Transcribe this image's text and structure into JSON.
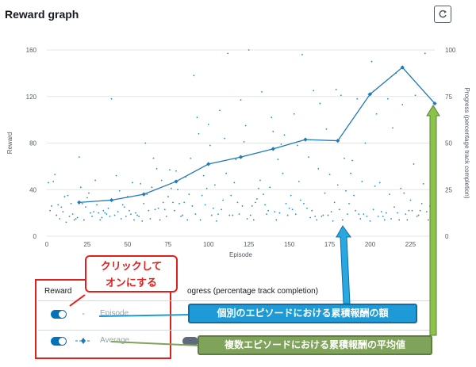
{
  "header": {
    "title": "Reward graph",
    "refresh_icon": "refresh-icon"
  },
  "chart_data": {
    "type": "scatter",
    "title": "",
    "xlabel": "Episode",
    "ylabel": "Reward",
    "y2label": "Progress (percentage track completion)",
    "xlim": [
      0,
      240
    ],
    "ylim": [
      0,
      160
    ],
    "y2lim": [
      0,
      100
    ],
    "x_ticks": [
      0,
      25,
      50,
      75,
      100,
      125,
      150,
      175,
      200,
      225
    ],
    "y_ticks": [
      0,
      40,
      80,
      120,
      160
    ],
    "y2_ticks": [
      0,
      25,
      50,
      75,
      100
    ],
    "grid": "horizontal",
    "colors": {
      "episode": "#1f8fc7",
      "average": "#1f7ab5",
      "grid": "#e6e6e6"
    },
    "series": [
      {
        "name": "Episode",
        "type": "scatter",
        "x": [
          1,
          2,
          3,
          4,
          5,
          6,
          7,
          8,
          9,
          10,
          11,
          12,
          13,
          14,
          15,
          16,
          17,
          18,
          19,
          20,
          21,
          22,
          23,
          24,
          25,
          26,
          27,
          28,
          29,
          30,
          31,
          32,
          33,
          34,
          35,
          36,
          37,
          38,
          39,
          40,
          41,
          42,
          43,
          44,
          45,
          46,
          47,
          48,
          49,
          50,
          51,
          52,
          53,
          54,
          55,
          56,
          57,
          58,
          59,
          60,
          61,
          62,
          63,
          64,
          65,
          66,
          67,
          68,
          69,
          70,
          71,
          72,
          73,
          74,
          75,
          76,
          77,
          78,
          79,
          80,
          81,
          82,
          83,
          84,
          85,
          86,
          87,
          88,
          89,
          90,
          91,
          92,
          93,
          94,
          95,
          96,
          97,
          98,
          99,
          100,
          101,
          102,
          103,
          104,
          105,
          106,
          107,
          108,
          109,
          110,
          111,
          112,
          113,
          114,
          115,
          116,
          117,
          118,
          119,
          120,
          121,
          122,
          123,
          124,
          125,
          126,
          127,
          128,
          129,
          130,
          131,
          132,
          133,
          134,
          135,
          136,
          137,
          138,
          139,
          140,
          141,
          142,
          143,
          144,
          145,
          146,
          147,
          148,
          149,
          150,
          151,
          152,
          153,
          154,
          155,
          156,
          157,
          158,
          159,
          160,
          161,
          162,
          163,
          164,
          165,
          166,
          167,
          168,
          169,
          170,
          171,
          172,
          173,
          174,
          175,
          176,
          177,
          178,
          179,
          180,
          181,
          182,
          183,
          184,
          185,
          186,
          187,
          188,
          189,
          190,
          191,
          192,
          193,
          194,
          195,
          196,
          197,
          198,
          199,
          200,
          201,
          202,
          203,
          204,
          205,
          206,
          207,
          208,
          209,
          210,
          211,
          212,
          213,
          214,
          215,
          216,
          217,
          218,
          219,
          220,
          221,
          222,
          223,
          224,
          225,
          226,
          227,
          228,
          229,
          230,
          231,
          232,
          233,
          234,
          235,
          236,
          237,
          238,
          239
        ],
        "y": [
          46,
          22,
          26,
          47,
          53,
          18,
          27,
          15,
          25,
          21,
          34,
          12,
          35,
          17,
          28,
          19,
          14,
          15,
          16,
          68,
          42,
          28,
          14,
          25,
          33,
          37,
          20,
          17,
          21,
          48,
          27,
          20,
          14,
          16,
          22,
          20,
          19,
          24,
          17,
          118,
          31,
          18,
          52,
          21,
          39,
          15,
          27,
          25,
          17,
          34,
          22,
          19,
          46,
          14,
          20,
          18,
          17,
          45,
          13,
          28,
          80,
          36,
          22,
          15,
          42,
          67,
          23,
          58,
          24,
          14,
          48,
          29,
          23,
          17,
          34,
          57,
          41,
          29,
          22,
          56,
          40,
          28,
          17,
          18,
          29,
          51,
          14,
          36,
          67,
          26,
          138,
          19,
          102,
          88,
          14,
          35,
          52,
          27,
          41,
          96,
          78,
          18,
          24,
          44,
          13,
          19,
          108,
          23,
          31,
          84,
          54,
          157,
          18,
          35,
          18,
          46,
          66,
          29,
          19,
          117,
          26,
          81,
          95,
          15,
          160,
          18,
          26,
          14,
          29,
          32,
          41,
          48,
          124,
          36,
          27,
          19,
          22,
          42,
          102,
          90,
          21,
          14,
          66,
          20,
          79,
          54,
          87,
          28,
          18,
          24,
          35,
          23,
          105,
          19,
          78,
          47,
          31,
          156,
          28,
          84,
          24,
          68,
          16,
          22,
          125,
          17,
          14,
          58,
          114,
          17,
          18,
          37,
          92,
          18,
          53,
          21,
          13,
          29,
          126,
          44,
          23,
          121,
          14,
          67,
          39,
          19,
          28,
          54,
          65,
          35,
          22,
          118,
          19,
          15,
          47,
          19,
          80,
          17,
          122,
          13,
          150,
          23,
          43,
          105,
          17,
          46,
          21,
          17,
          14,
          20,
          118,
          36,
          15,
          93,
          25,
          140,
          20,
          14,
          41,
          113,
          37,
          19,
          14,
          22,
          31,
          22,
          62,
          121,
          17,
          18,
          22,
          28,
          45,
          157,
          21,
          14,
          26,
          22,
          35
        ]
      },
      {
        "name": "Average",
        "type": "line",
        "x": [
          20,
          40,
          60,
          80,
          100,
          120,
          140,
          160,
          180,
          200,
          220,
          240
        ],
        "y": [
          29,
          31,
          36,
          47,
          62,
          68,
          75,
          83,
          82,
          122,
          145,
          114
        ]
      }
    ]
  },
  "legend": {
    "reward_header": "Reward",
    "progress_header": "ogress (percentage track completion)",
    "episode_label": "Episode",
    "average_label": "Average"
  },
  "annotations": {
    "red_callout_line1": "クリックして",
    "red_callout_line2": "オンにする",
    "blue_callout": "個別のエピソードにおける累積報酬の額",
    "green_callout": "複数エピソードにおける累積報酬の平均値",
    "colors": {
      "red": "#e0201c",
      "blue": "#1e9bd7",
      "green": "#7fa35a"
    }
  }
}
